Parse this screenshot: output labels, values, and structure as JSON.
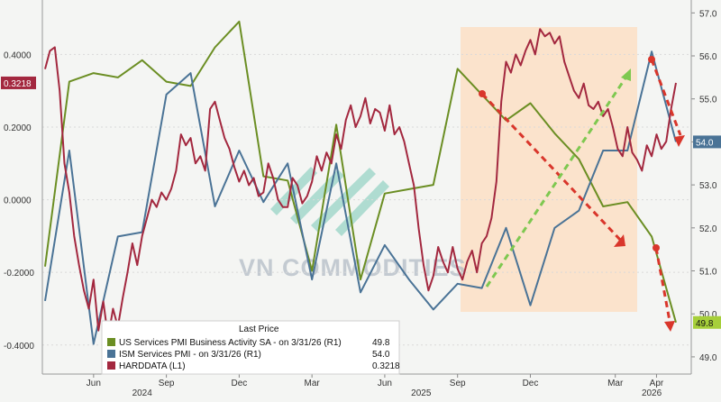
{
  "chart_data": {
    "type": "line",
    "x_tick_labels": [
      "Jun",
      "Sep",
      "Dec",
      "Mar",
      "Jun",
      "Sep",
      "Dec",
      "Mar",
      "Apr"
    ],
    "x_year_labels": [
      "2024",
      "2025",
      "2026"
    ],
    "left_axis": {
      "ticks": [
        "0.4000",
        "0.2000",
        "0.0000",
        "-0.2000",
        "-0.4000"
      ],
      "ylim": [
        -0.48,
        0.55
      ]
    },
    "right_axis": {
      "ticks": [
        "57.0",
        "56.0",
        "55.0",
        "54.0",
        "53.0",
        "52.0",
        "51.0",
        "50.0",
        "49.0"
      ],
      "ylim": [
        48.6,
        57.3
      ]
    },
    "last_value_tags": {
      "harddata": "0.3218",
      "ism": "54.0",
      "us_pmi": "49.8"
    },
    "colors": {
      "us_pmi": "#6b8e23",
      "ism": "#4a7396",
      "harddata": "#a3283f",
      "arrow_red": "#d9362b",
      "arrow_green": "#7ec850",
      "highlight": "#fbe3cc"
    },
    "legend": {
      "title": "Last Price",
      "rows": [
        {
          "label": "US Services PMI Business Activity SA -  on 3/31/26  (R1)",
          "value": "49.8"
        },
        {
          "label": "ISM Services PMI -  on 3/31/26  (R1)",
          "value": "54.0"
        },
        {
          "label": "HARDDATA  (L1)",
          "value": "0.3218"
        }
      ]
    },
    "watermark": "VN COMMODITIES",
    "series": [
      {
        "name": "US Services PMI Business Activity SA",
        "axis": "right",
        "values": [
          [
            0.0,
            51.1
          ],
          [
            1.0,
            55.4
          ],
          [
            2.0,
            55.6
          ],
          [
            3.0,
            55.5
          ],
          [
            4.0,
            55.9
          ],
          [
            5.0,
            55.4
          ],
          [
            6.0,
            55.3
          ],
          [
            7.0,
            56.2
          ],
          [
            8.0,
            56.8
          ],
          [
            9.0,
            53.2
          ],
          [
            10.0,
            53.1
          ],
          [
            11.0,
            51.0
          ],
          [
            12.0,
            54.4
          ],
          [
            13.0,
            50.8
          ],
          [
            14.0,
            52.8
          ],
          [
            15.0,
            52.9
          ],
          [
            16.0,
            53.0
          ],
          [
            17.0,
            55.7
          ],
          [
            18.0,
            55.1
          ],
          [
            19.0,
            54.5
          ],
          [
            20.0,
            54.9
          ],
          [
            21.0,
            54.2
          ],
          [
            22.0,
            53.6
          ],
          [
            23.0,
            52.5
          ],
          [
            24.0,
            52.6
          ],
          [
            25.0,
            51.8
          ],
          [
            26.0,
            49.8
          ]
        ]
      },
      {
        "name": "ISM Services PMI",
        "axis": "right",
        "values": [
          [
            0.0,
            50.3
          ],
          [
            1.0,
            53.8
          ],
          [
            2.0,
            49.3
          ],
          [
            3.0,
            51.8
          ],
          [
            4.0,
            51.9
          ],
          [
            5.0,
            55.1
          ],
          [
            6.0,
            55.6
          ],
          [
            7.0,
            52.5
          ],
          [
            8.0,
            53.8
          ],
          [
            9.0,
            52.6
          ],
          [
            10.0,
            53.5
          ],
          [
            11.0,
            50.8
          ],
          [
            12.0,
            53.5
          ],
          [
            13.0,
            50.5
          ],
          [
            14.0,
            51.6
          ],
          [
            15.0,
            50.8
          ],
          [
            16.0,
            50.1
          ],
          [
            17.0,
            50.7
          ],
          [
            18.0,
            50.6
          ],
          [
            19.0,
            52.0
          ],
          [
            20.0,
            50.2
          ],
          [
            21.0,
            52.0
          ],
          [
            22.0,
            52.4
          ],
          [
            23.0,
            53.8
          ],
          [
            24.0,
            53.8
          ],
          [
            25.0,
            56.1
          ],
          [
            26.0,
            54.0
          ]
        ]
      },
      {
        "name": "HARDDATA",
        "axis": "left",
        "values": [
          [
            0.0,
            0.36
          ],
          [
            0.2,
            0.41
          ],
          [
            0.4,
            0.42
          ],
          [
            0.6,
            0.3
          ],
          [
            0.8,
            0.1
          ],
          [
            1.0,
            0.02
          ],
          [
            1.2,
            -0.1
          ],
          [
            1.4,
            -0.18
          ],
          [
            1.6,
            -0.25
          ],
          [
            1.8,
            -0.3
          ],
          [
            2.0,
            -0.22
          ],
          [
            2.2,
            -0.36
          ],
          [
            2.4,
            -0.28
          ],
          [
            2.6,
            -0.38
          ],
          [
            2.8,
            -0.3
          ],
          [
            3.0,
            -0.35
          ],
          [
            3.2,
            -0.27
          ],
          [
            3.4,
            -0.2
          ],
          [
            3.6,
            -0.12
          ],
          [
            3.8,
            -0.18
          ],
          [
            4.0,
            -0.1
          ],
          [
            4.2,
            -0.05
          ],
          [
            4.4,
            0.0
          ],
          [
            4.6,
            -0.02
          ],
          [
            4.8,
            0.02
          ],
          [
            5.0,
            0.0
          ],
          [
            5.2,
            0.03
          ],
          [
            5.4,
            0.08
          ],
          [
            5.6,
            0.18
          ],
          [
            5.8,
            0.15
          ],
          [
            6.0,
            0.17
          ],
          [
            6.2,
            0.1
          ],
          [
            6.4,
            0.12
          ],
          [
            6.6,
            0.08
          ],
          [
            6.8,
            0.25
          ],
          [
            7.0,
            0.27
          ],
          [
            7.2,
            0.22
          ],
          [
            7.4,
            0.17
          ],
          [
            7.6,
            0.14
          ],
          [
            7.8,
            0.09
          ],
          [
            8.0,
            0.05
          ],
          [
            8.2,
            0.08
          ],
          [
            8.4,
            0.04
          ],
          [
            8.6,
            0.06
          ],
          [
            8.8,
            0.01
          ],
          [
            9.0,
            0.02
          ],
          [
            9.2,
            0.1
          ],
          [
            9.4,
            0.06
          ],
          [
            9.6,
            0.0
          ],
          [
            9.8,
            -0.02
          ],
          [
            10.0,
            -0.02
          ],
          [
            10.2,
            0.06
          ],
          [
            10.4,
            0.04
          ],
          [
            10.6,
            -0.01
          ],
          [
            10.8,
            0.01
          ],
          [
            11.0,
            0.05
          ],
          [
            11.2,
            0.12
          ],
          [
            11.4,
            0.08
          ],
          [
            11.6,
            0.13
          ],
          [
            11.8,
            0.1
          ],
          [
            12.0,
            0.18
          ],
          [
            12.2,
            0.14
          ],
          [
            12.4,
            0.22
          ],
          [
            12.6,
            0.26
          ],
          [
            12.8,
            0.2
          ],
          [
            13.0,
            0.23
          ],
          [
            13.2,
            0.28
          ],
          [
            13.4,
            0.21
          ],
          [
            13.6,
            0.25
          ],
          [
            13.8,
            0.24
          ],
          [
            14.0,
            0.19
          ],
          [
            14.2,
            0.26
          ],
          [
            14.4,
            0.18
          ],
          [
            14.6,
            0.2
          ],
          [
            14.8,
            0.16
          ],
          [
            15.0,
            0.1
          ],
          [
            15.2,
            0.04
          ],
          [
            15.4,
            -0.08
          ],
          [
            15.6,
            -0.18
          ],
          [
            15.8,
            -0.25
          ],
          [
            16.0,
            -0.21
          ],
          [
            16.2,
            -0.13
          ],
          [
            16.4,
            -0.17
          ],
          [
            16.6,
            -0.2
          ],
          [
            16.8,
            -0.13
          ],
          [
            17.0,
            -0.19
          ],
          [
            17.2,
            -0.22
          ],
          [
            17.4,
            -0.17
          ],
          [
            17.6,
            -0.14
          ],
          [
            17.8,
            -0.2
          ],
          [
            18.0,
            -0.12
          ],
          [
            18.2,
            -0.1
          ],
          [
            18.4,
            -0.05
          ],
          [
            18.6,
            0.05
          ],
          [
            18.8,
            0.27
          ],
          [
            19.0,
            0.38
          ],
          [
            19.2,
            0.35
          ],
          [
            19.4,
            0.4
          ],
          [
            19.6,
            0.37
          ],
          [
            19.8,
            0.41
          ],
          [
            20.0,
            0.44
          ],
          [
            20.2,
            0.4
          ],
          [
            20.4,
            0.47
          ],
          [
            20.6,
            0.45
          ],
          [
            20.8,
            0.46
          ],
          [
            21.0,
            0.43
          ],
          [
            21.2,
            0.45
          ],
          [
            21.4,
            0.38
          ],
          [
            21.6,
            0.34
          ],
          [
            21.8,
            0.3
          ],
          [
            22.0,
            0.28
          ],
          [
            22.2,
            0.32
          ],
          [
            22.4,
            0.26
          ],
          [
            22.6,
            0.25
          ],
          [
            22.8,
            0.27
          ],
          [
            23.0,
            0.23
          ],
          [
            23.2,
            0.25
          ],
          [
            23.4,
            0.2
          ],
          [
            23.6,
            0.14
          ],
          [
            23.8,
            0.12
          ],
          [
            24.0,
            0.2
          ],
          [
            24.2,
            0.13
          ],
          [
            24.4,
            0.11
          ],
          [
            24.6,
            0.08
          ],
          [
            24.8,
            0.15
          ],
          [
            25.0,
            0.12
          ],
          [
            25.2,
            0.18
          ],
          [
            25.4,
            0.14
          ],
          [
            25.6,
            0.16
          ],
          [
            25.8,
            0.25
          ],
          [
            26.0,
            0.3218
          ]
        ]
      }
    ]
  }
}
